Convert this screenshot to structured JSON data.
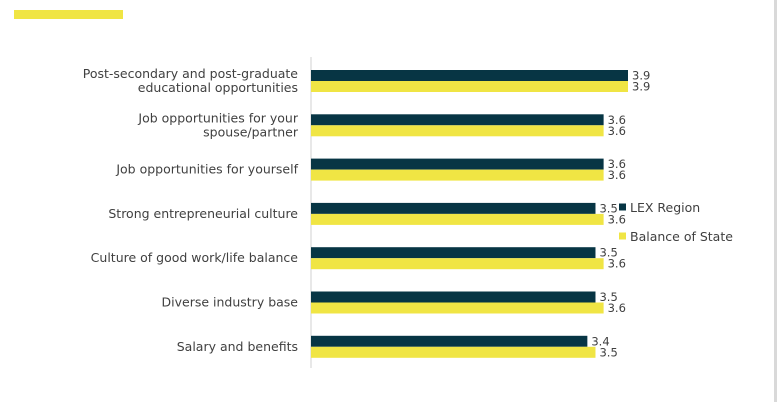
{
  "colors": {
    "accent": "#f0e544",
    "lex": "#073544",
    "balance": "#f0e544",
    "axis": "#d0d0d0",
    "text": "#404040"
  },
  "chart_data": {
    "type": "bar",
    "orientation": "horizontal",
    "categories": [
      [
        "Post-secondary and post-graduate",
        "educational opportunities"
      ],
      [
        "Job opportunities for your",
        "spouse/partner"
      ],
      [
        "Job opportunities for yourself"
      ],
      [
        "Strong entrepreneurial culture"
      ],
      [
        "Culture of good work/life balance"
      ],
      [
        "Diverse industry base"
      ],
      [
        "Salary and benefits"
      ]
    ],
    "series": [
      {
        "name": "LEX Region",
        "values": [
          3.9,
          3.6,
          3.6,
          3.5,
          3.5,
          3.5,
          3.4
        ],
        "labels": [
          "3.9",
          "3.6",
          "3.6",
          "3.5",
          "3.5",
          "3.5",
          "3.4"
        ]
      },
      {
        "name": "Balance of State",
        "values": [
          3.9,
          3.6,
          3.6,
          3.6,
          3.6,
          3.6,
          3.5
        ],
        "labels": [
          "3.9",
          "3.6",
          "3.6",
          "3.6",
          "3.6",
          "3.6",
          "3.5"
        ]
      }
    ],
    "xlim": [
      0,
      3.9
    ],
    "grid": false,
    "legend_position": "right"
  }
}
